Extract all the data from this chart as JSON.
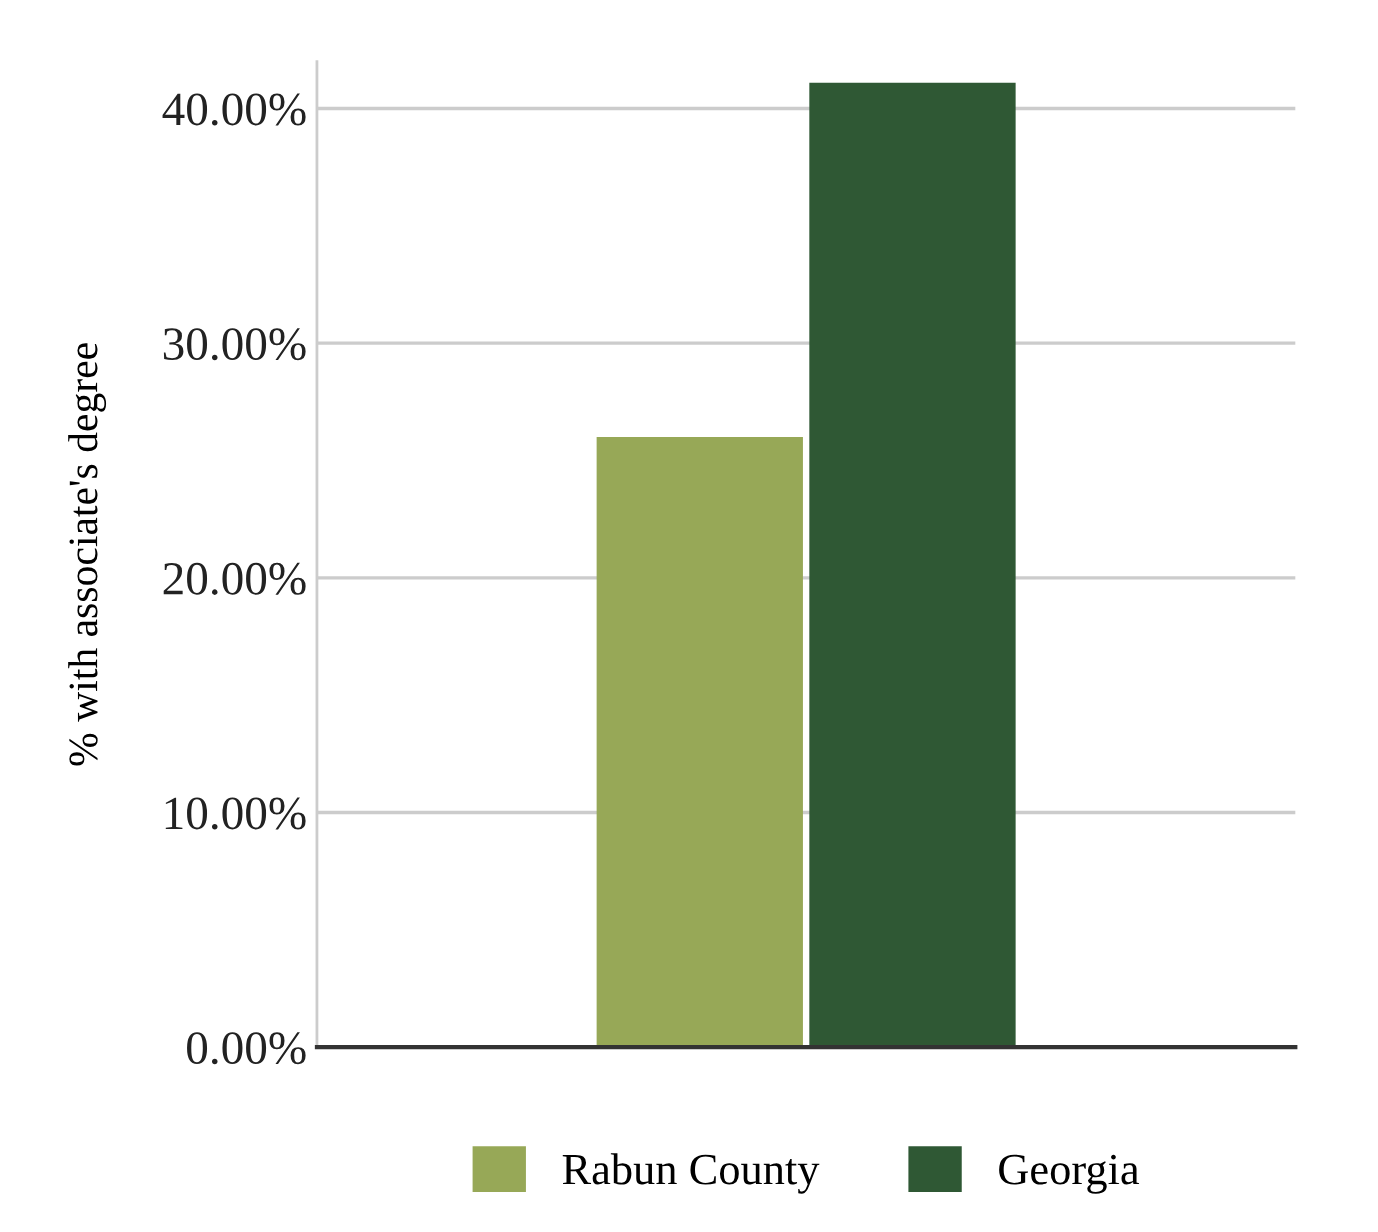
{
  "chart_data": {
    "type": "bar",
    "ylabel": "% with associate's degree",
    "categories": [
      null
    ],
    "series": [
      {
        "name": "Rabun County",
        "color": "#97a857",
        "values": [
          26.0
        ]
      },
      {
        "name": "Georgia",
        "color": "#2f5834",
        "values": [
          41.1
        ]
      }
    ],
    "yticks": [
      {
        "value": 0,
        "label": "0.00%"
      },
      {
        "value": 10,
        "label": "10.00%"
      },
      {
        "value": 20,
        "label": "20.00%"
      },
      {
        "value": 30,
        "label": "30.00%"
      },
      {
        "value": 40,
        "label": "40.00%"
      }
    ],
    "ylim": [
      0,
      42
    ],
    "grid": "y",
    "legend": "bottom"
  }
}
